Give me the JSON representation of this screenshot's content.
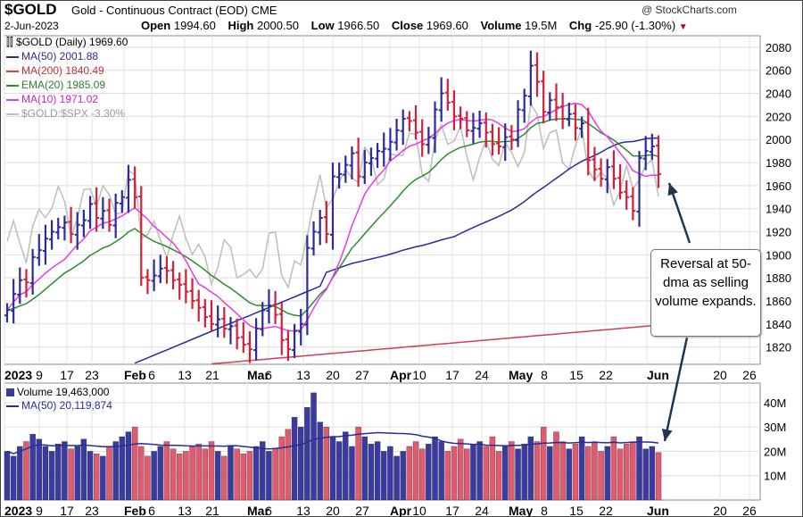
{
  "header": {
    "symbol": "$GOLD",
    "name": "Gold - Continuous Contract (EOD)",
    "exchange": "CME",
    "source": "@ StockCharts.com",
    "date": "2-Jun-2023",
    "open_label": "Open",
    "open": "1994.60",
    "high_label": "High",
    "high": "2000.50",
    "low_label": "Low",
    "low": "1966.50",
    "close_label": "Close",
    "close": "1969.60",
    "volume_label": "Volume",
    "volume": "19.5M",
    "chg_label": "Chg",
    "chg": "-25.90 (-1.30%)"
  },
  "legend": {
    "price": "$GOLD (Daily) 1969.60",
    "ma50": "MA(50) 2001.88",
    "ma200": "MA(200) 1840.49",
    "ema20": "EMA(20) 1985.09",
    "ma10": "MA(10) 1971.02",
    "ratio": "$GOLD:$SPX -3.30%",
    "volume": "Volume 19,463,000",
    "volma": "MA(50) 20,119,874"
  },
  "annotation": "Reversal at 50-dma as selling volume expands.",
  "colors": {
    "up": "#2b2b9b",
    "down": "#d0203a",
    "ma50": "#2b2b9b",
    "ma200": "#d04050",
    "ema20": "#2e8b2e",
    "ma10": "#e83ce8",
    "ratio": "#c0c0c0",
    "volUp": "#3a3aa0",
    "volDown": "#e05a70"
  },
  "chart_data": [
    {
      "type": "ohlc",
      "title": "$GOLD (Daily) 1969.60",
      "yrange": [
        1805,
        2090
      ],
      "yticks": [
        1820,
        1840,
        1860,
        1880,
        1900,
        1920,
        1940,
        1960,
        1980,
        2000,
        2020,
        2040,
        2060,
        2080
      ],
      "xticks": [
        "2023",
        "9",
        "17",
        "23",
        "Feb",
        "6",
        "13",
        "21",
        "Mar",
        "6",
        "13",
        "20",
        "27",
        "Apr",
        "10",
        "17",
        "24",
        "May",
        "8",
        "15",
        "22",
        "Jun",
        "20",
        "26"
      ],
      "close": [
        1852,
        1866,
        1878,
        1876,
        1898,
        1904,
        1914,
        1920,
        1924,
        1928,
        1918,
        1926,
        1930,
        1944,
        1932,
        1938,
        1926,
        1945,
        1950,
        1965,
        1950,
        1880,
        1878,
        1882,
        1888,
        1886,
        1878,
        1874,
        1868,
        1860,
        1854,
        1846,
        1840,
        1844,
        1836,
        1838,
        1828,
        1822,
        1818,
        1836,
        1852,
        1856,
        1848,
        1826,
        1818,
        1834,
        1840,
        1906,
        1920,
        1932,
        1918,
        1968,
        1970,
        1978,
        1988,
        1968,
        1980,
        1984,
        1990,
        1992,
        1998,
        2008,
        2018,
        2016,
        2006,
        1996,
        2002,
        2026,
        2040,
        2032,
        2020,
        2018,
        2008,
        2010,
        2014,
        2006,
        1996,
        1994,
        2002,
        2000,
        2026,
        2038,
        2064,
        2050,
        2024,
        2034,
        2028,
        2018,
        2022,
        2010,
        2014,
        1982,
        1974,
        1966,
        1976,
        1966,
        1954,
        1950,
        1938,
        1984,
        1990,
        1994,
        1970
      ],
      "series": [
        {
          "name": "MA(50)",
          "end_value": 2001.88
        },
        {
          "name": "MA(200)",
          "end_value": 1840.49
        },
        {
          "name": "EMA(20)",
          "end_value": 1985.09
        },
        {
          "name": "MA(10)",
          "end_value": 1971.02
        },
        {
          "name": "$GOLD:$SPX",
          "end_value": "-3.30%"
        }
      ]
    },
    {
      "type": "bar",
      "title": "Volume 19,463,000",
      "yticks": [
        "10M",
        "20M",
        "30M",
        "40M"
      ],
      "ylim": [
        0,
        48
      ],
      "values_m": [
        20,
        18,
        22,
        24,
        27,
        25,
        22,
        20,
        23,
        24,
        21,
        22,
        25,
        20,
        19,
        18,
        22,
        24,
        26,
        28,
        30,
        22,
        18,
        20,
        22,
        24,
        21,
        19,
        20,
        22,
        23,
        21,
        24,
        20,
        18,
        22,
        21,
        19,
        20,
        22,
        24,
        20,
        21,
        26,
        29,
        34,
        30,
        38,
        44,
        32,
        30,
        26,
        24,
        28,
        22,
        30,
        26,
        23,
        24,
        20,
        22,
        18,
        20,
        22,
        24,
        21,
        23,
        26,
        24,
        20,
        22,
        25,
        21,
        23,
        24,
        22,
        26,
        20,
        22,
        24,
        21,
        23,
        26,
        24,
        30,
        22,
        28,
        24,
        21,
        23,
        26,
        22,
        24,
        20,
        22,
        26,
        21,
        23,
        24,
        26,
        21,
        22,
        19.5
      ],
      "ma50_end": "20,119,874"
    }
  ]
}
